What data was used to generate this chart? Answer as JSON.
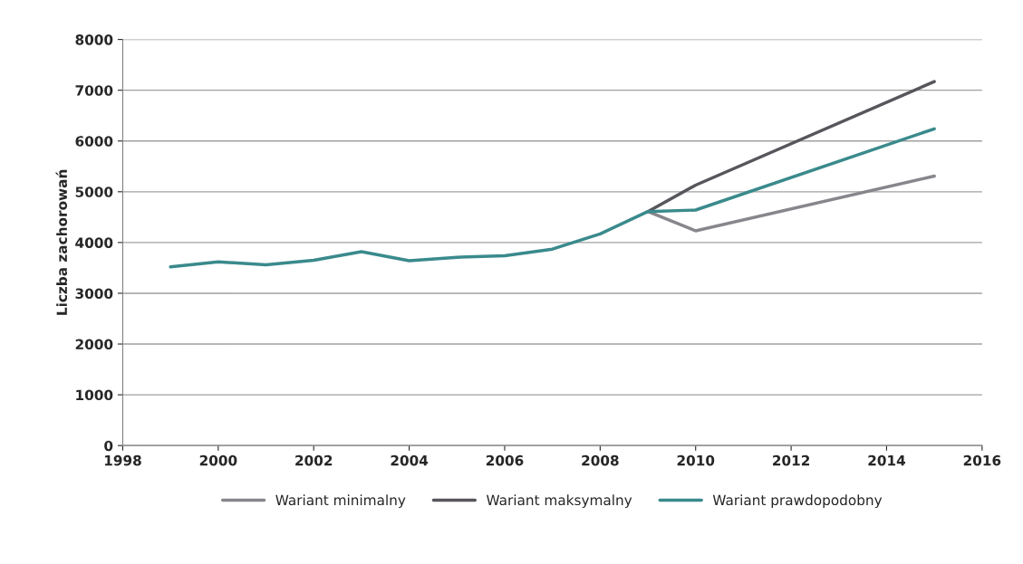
{
  "chart_data": {
    "type": "line",
    "ylabel": "Liczba zachorowań",
    "x": [
      1999,
      2000,
      2001,
      2002,
      2003,
      2004,
      2005,
      2006,
      2007,
      2008,
      2009,
      2010,
      2015
    ],
    "series": [
      {
        "name": "Wariant minimalny",
        "color": "#88868c",
        "values": [
          null,
          null,
          null,
          null,
          null,
          null,
          null,
          null,
          null,
          null,
          4610,
          4230,
          5310
        ]
      },
      {
        "name": "Wariant maksymalny",
        "color": "#58565c",
        "values": [
          null,
          null,
          null,
          null,
          null,
          null,
          null,
          null,
          null,
          null,
          4610,
          5130,
          7170
        ]
      },
      {
        "name": "Wariant prawdopodobny",
        "color": "#3a8a8c",
        "values": [
          3520,
          3620,
          3560,
          3650,
          3820,
          3640,
          3710,
          3740,
          3870,
          4170,
          4610,
          4640,
          6240
        ]
      }
    ],
    "xlim": [
      1998,
      2016
    ],
    "xticks": [
      1998,
      2000,
      2002,
      2004,
      2006,
      2008,
      2010,
      2012,
      2014,
      2016
    ],
    "ylim": [
      0,
      8000
    ],
    "yticks": [
      0,
      1000,
      2000,
      3000,
      4000,
      5000,
      6000,
      7000,
      8000
    ],
    "grid": "y",
    "legend": "bottom",
    "marker": "none",
    "line_style": "solid"
  }
}
